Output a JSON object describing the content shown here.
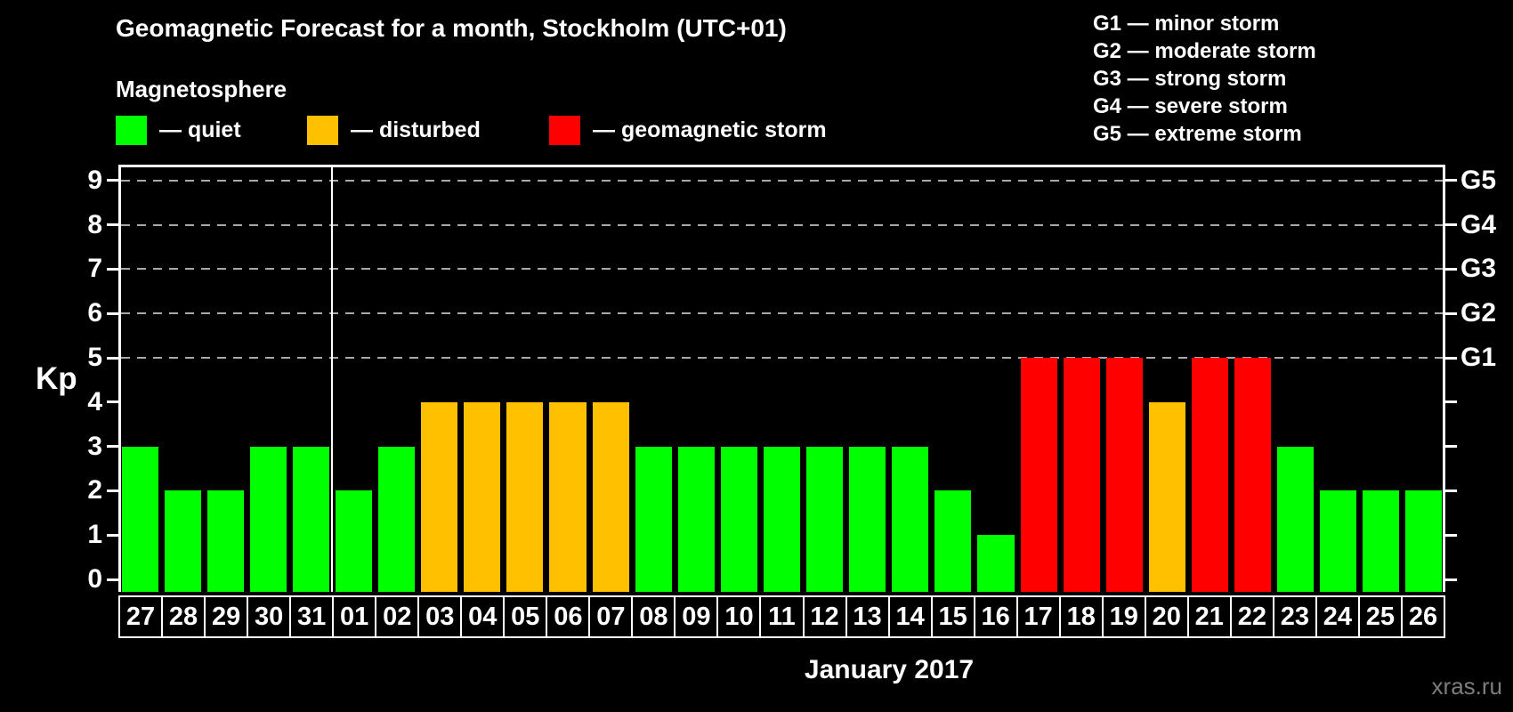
{
  "header": {
    "title": "Geomagnetic Forecast for a month, Stockholm (UTC+01)",
    "subtitle": "Magnetosphere"
  },
  "legend": {
    "items": [
      {
        "key": "quiet",
        "label": "— quiet",
        "color": "#00FF00"
      },
      {
        "key": "disturbed",
        "label": "— disturbed",
        "color": "#FFC000"
      },
      {
        "key": "storm",
        "label": "— geomagnetic storm",
        "color": "#FF0000"
      }
    ]
  },
  "g_legend": {
    "items": [
      "G1 — minor storm",
      "G2 — moderate storm",
      "G3 — strong storm",
      "G4 — severe storm",
      "G5 — extreme storm"
    ]
  },
  "axes": {
    "y_label": "Kp",
    "y_ticks": [
      0,
      1,
      2,
      3,
      4,
      5,
      6,
      7,
      8,
      9
    ],
    "right_ticks": [
      {
        "kp": 5,
        "label": "G1"
      },
      {
        "kp": 6,
        "label": "G2"
      },
      {
        "kp": 7,
        "label": "G3"
      },
      {
        "kp": 8,
        "label": "G4"
      },
      {
        "kp": 9,
        "label": "G5"
      }
    ],
    "x_label": "January 2017"
  },
  "watermark": "xras.ru",
  "chart_data": {
    "type": "bar",
    "title": "Geomagnetic Forecast for a month, Stockholm (UTC+01)",
    "xlabel": "January 2017",
    "ylabel": "Kp",
    "ylim": [
      0,
      9.4
    ],
    "grid": "dashed horizontal gridlines at Kp 5 through 9 only",
    "gridlines_at": [
      5,
      6,
      7,
      8,
      9
    ],
    "legend_position": "top-left",
    "categories": [
      "27",
      "28",
      "29",
      "30",
      "31",
      "01",
      "02",
      "03",
      "04",
      "05",
      "06",
      "07",
      "08",
      "09",
      "10",
      "11",
      "12",
      "13",
      "14",
      "15",
      "16",
      "17",
      "18",
      "19",
      "20",
      "21",
      "22",
      "23",
      "24",
      "25",
      "26"
    ],
    "values": [
      3,
      2,
      2,
      3,
      3,
      2,
      3,
      4,
      4,
      4,
      4,
      4,
      3,
      3,
      3,
      3,
      3,
      3,
      3,
      2,
      1,
      5,
      5,
      5,
      4,
      5,
      5,
      3,
      2,
      2,
      2
    ],
    "statuses": [
      "quiet",
      "quiet",
      "quiet",
      "quiet",
      "quiet",
      "quiet",
      "quiet",
      "disturbed",
      "disturbed",
      "disturbed",
      "disturbed",
      "disturbed",
      "quiet",
      "quiet",
      "quiet",
      "quiet",
      "quiet",
      "quiet",
      "quiet",
      "quiet",
      "quiet",
      "storm",
      "storm",
      "storm",
      "disturbed",
      "storm",
      "storm",
      "quiet",
      "quiet",
      "quiet",
      "quiet"
    ],
    "status_colors": {
      "quiet": "#00FF00",
      "disturbed": "#FFC000",
      "storm": "#FF0000"
    },
    "month_boundary_after_index": 4
  }
}
